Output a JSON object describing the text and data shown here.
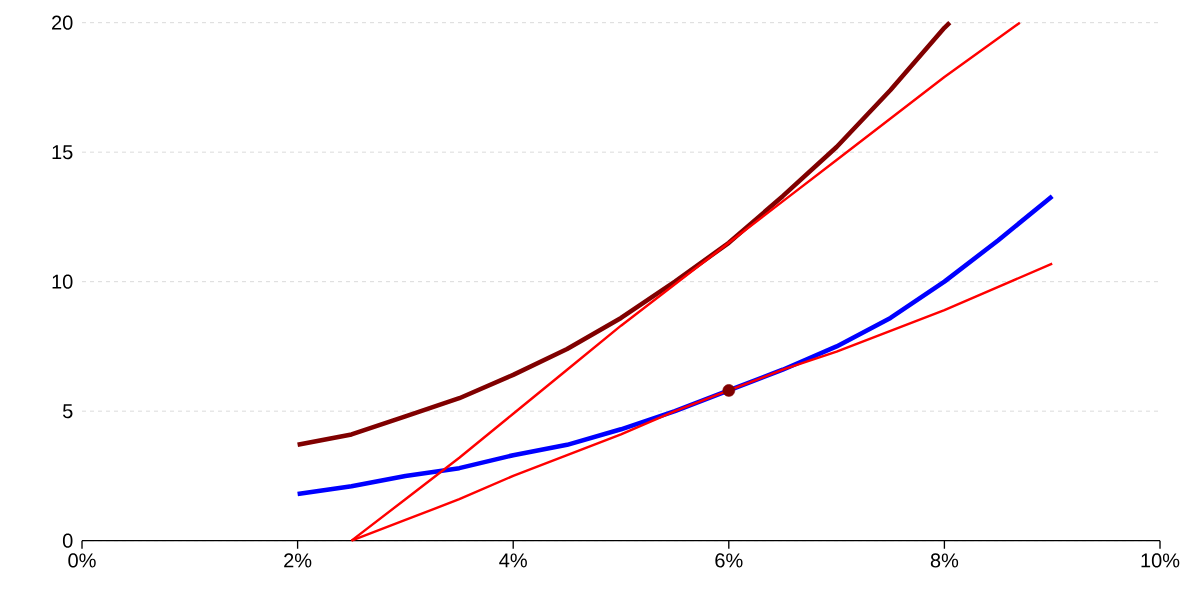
{
  "chart_data": {
    "type": "line",
    "xlim": [
      0,
      10
    ],
    "ylim": [
      0,
      20
    ],
    "xticks": [
      {
        "value": 0,
        "label": "0%"
      },
      {
        "value": 2,
        "label": "2%"
      },
      {
        "value": 4,
        "label": "4%"
      },
      {
        "value": 6,
        "label": "6%"
      },
      {
        "value": 8,
        "label": "8%"
      },
      {
        "value": 10,
        "label": "10%"
      }
    ],
    "yticks": [
      0,
      5,
      10,
      15,
      20
    ],
    "grid": "y",
    "series": [
      {
        "color": "#800000",
        "x": [
          2,
          2.5,
          3,
          3.5,
          4,
          4.5,
          5,
          5.5,
          6,
          6.5,
          7,
          7.5,
          8,
          8.05
        ],
        "values": [
          3.7,
          4.1,
          4.8,
          5.5,
          6.4,
          7.4,
          8.6,
          10.0,
          11.5,
          13.3,
          15.2,
          17.4,
          19.8,
          20
        ]
      },
      {
        "color": "#0000ff",
        "x": [
          2,
          2.5,
          3,
          3.5,
          4,
          4.5,
          5,
          5.5,
          6,
          6.5,
          7,
          7.5,
          8,
          8.5,
          9
        ],
        "values": [
          1.8,
          2.1,
          2.5,
          2.8,
          3.3,
          3.7,
          4.3,
          5.0,
          5.8,
          6.6,
          7.5,
          8.6,
          10.0,
          11.6,
          13.3
        ]
      },
      {
        "color": "#ff0000",
        "x": [
          2.5,
          3,
          3.5,
          4,
          4.5,
          5,
          5.5,
          6,
          6.5,
          7,
          7.5,
          8,
          8.7
        ],
        "values": [
          0,
          1.6,
          3.2,
          4.9,
          6.6,
          8.3,
          9.9,
          11.5,
          13.1,
          14.7,
          16.3,
          17.9,
          20
        ]
      },
      {
        "color": "#ff0000",
        "x": [
          2.5,
          3,
          3.5,
          4,
          4.5,
          5,
          5.5,
          6,
          6.5,
          7,
          7.5,
          8,
          8.5,
          9
        ],
        "values": [
          0,
          0.8,
          1.6,
          2.5,
          3.3,
          4.1,
          5.0,
          5.8,
          6.6,
          7.3,
          8.1,
          8.9,
          9.8,
          10.7
        ]
      },
      {
        "type": "scatter",
        "marker": "circle",
        "color": "#800000",
        "x": [
          6
        ],
        "values": [
          5.8
        ]
      }
    ]
  }
}
